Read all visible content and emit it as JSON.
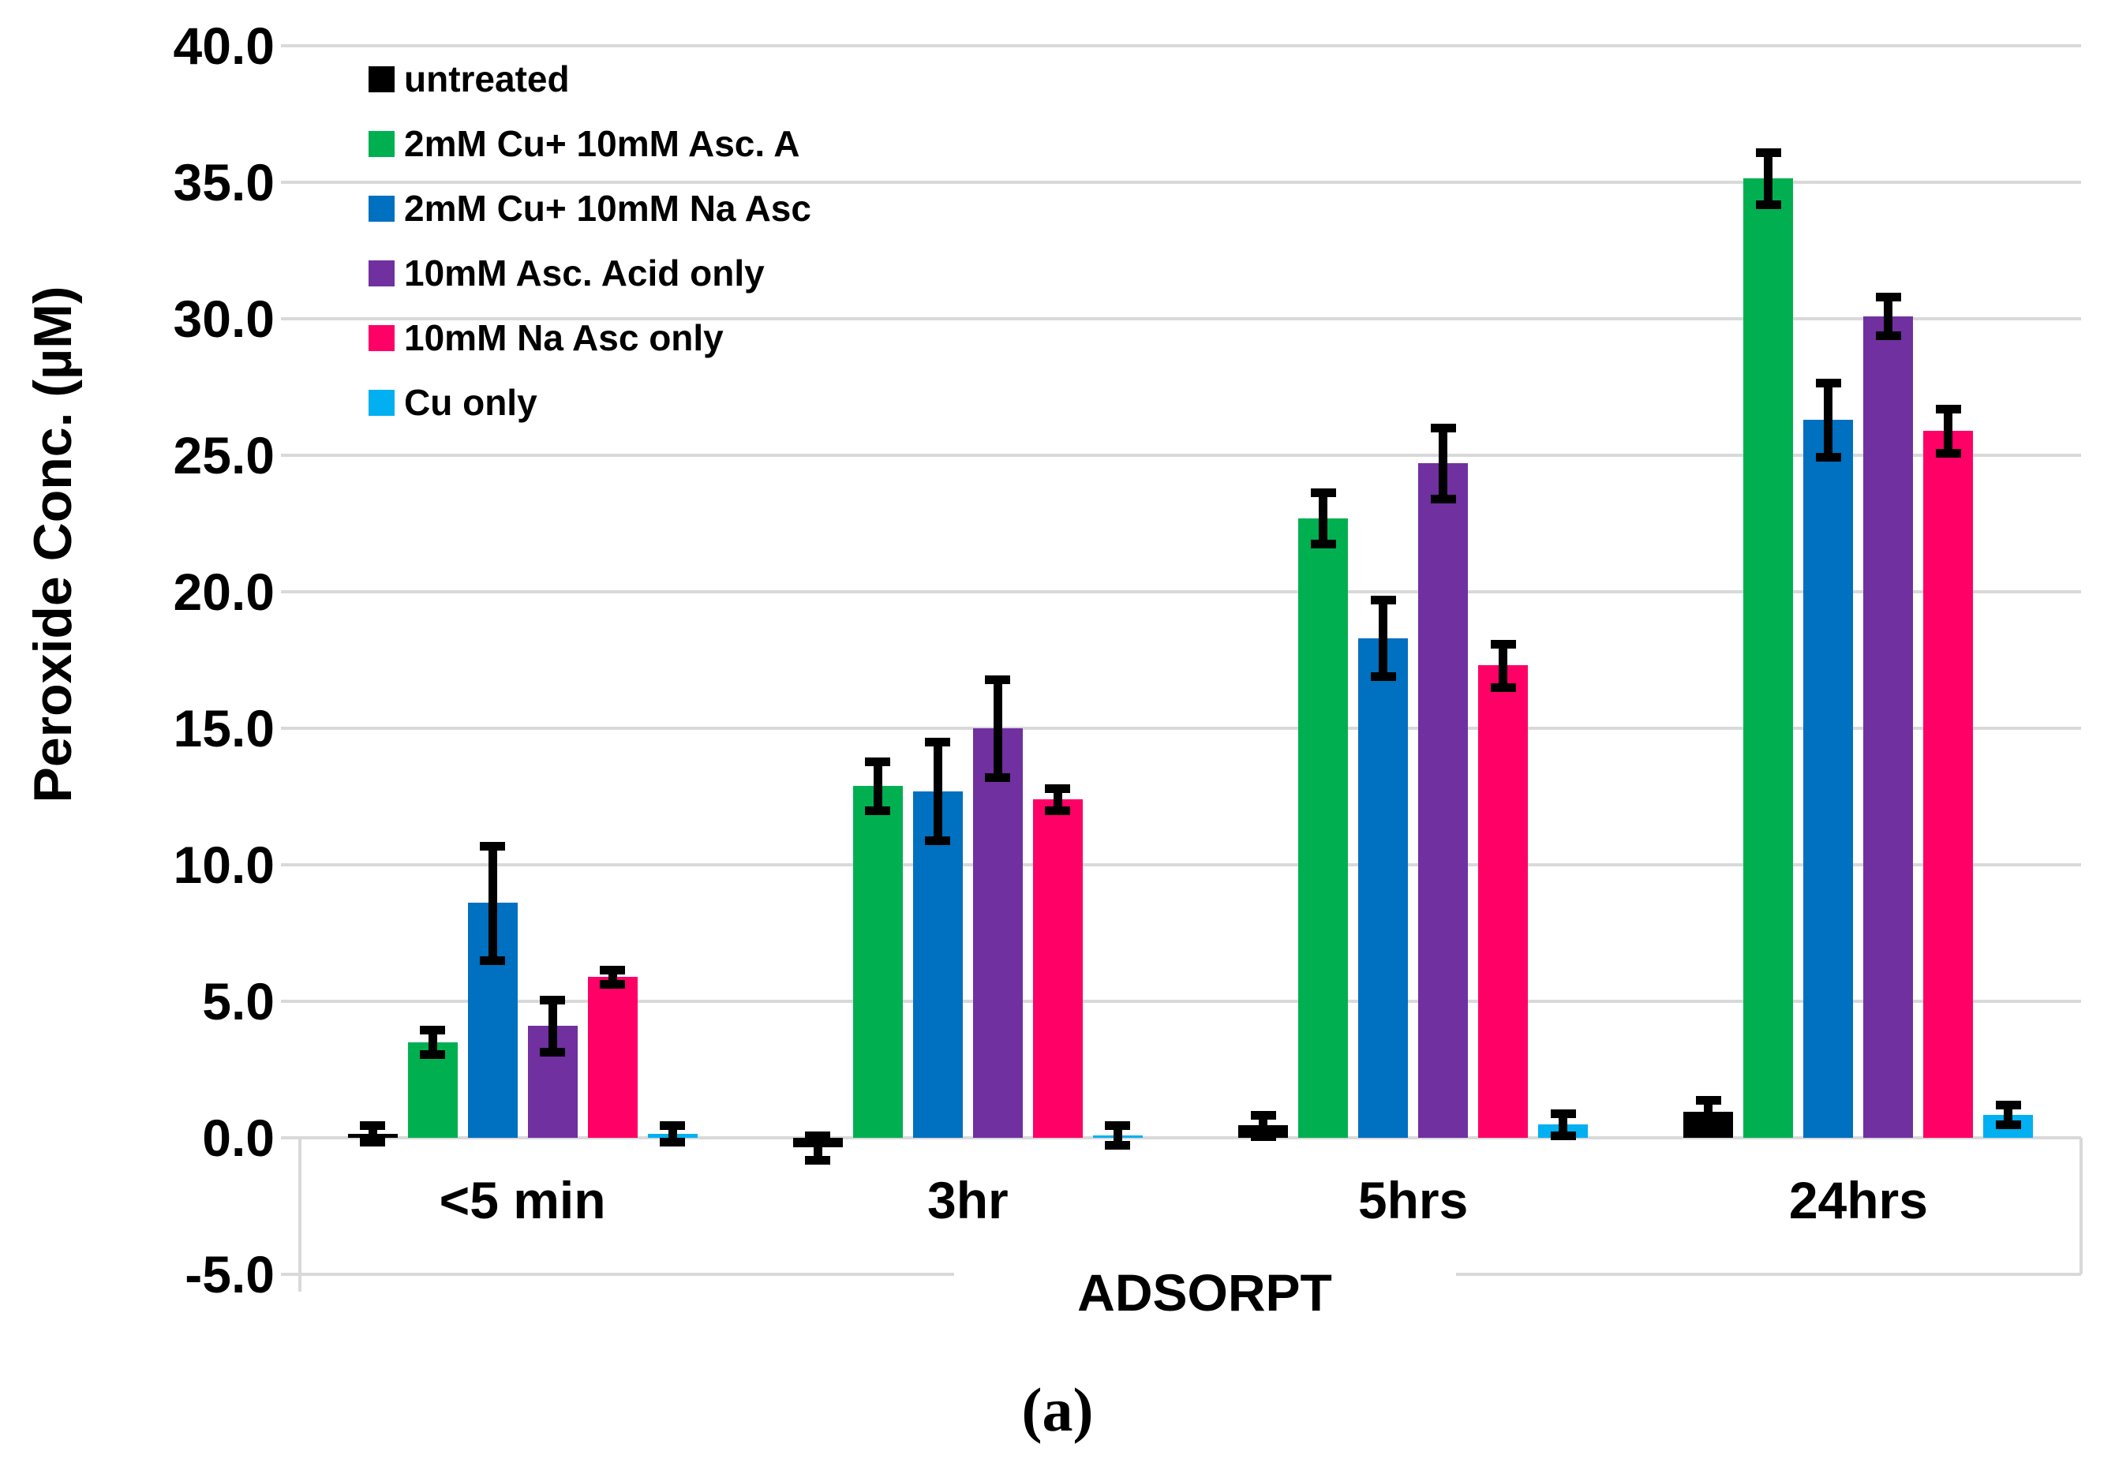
{
  "figure_caption": "(a)",
  "colors": {
    "background": "#FFFFFF",
    "grid": "#D9D9D9",
    "axis": "#D9D9D9",
    "text": "#000000",
    "error_bar": "#000000"
  },
  "chart_data": {
    "type": "bar",
    "title": "",
    "xlabel": "ADSORPT",
    "ylabel": "Peroxide Conc. (µM)",
    "ylim": [
      -5,
      40
    ],
    "ytick_step": 5,
    "ytick_labels": [
      "40.0",
      "35.0",
      "30.0",
      "25.0",
      "20.0",
      "15.0",
      "10.0",
      "5.0",
      "0.0",
      "-5.0"
    ],
    "grid": true,
    "legend_position": "top-left-inside",
    "categories": [
      "<5 min",
      "3hr",
      "5hrs",
      "24hrs"
    ],
    "series": [
      {
        "name": "untreated",
        "color": "#000000",
        "values": [
          0.15,
          -0.35,
          0.45,
          0.95
        ],
        "errors": [
          0.3,
          0.45,
          0.4,
          0.45
        ]
      },
      {
        "name": "2mM Cu+ 10mM Asc. A",
        "color": "#00B050",
        "values": [
          3.5,
          12.9,
          22.7,
          35.15
        ],
        "errors": [
          0.45,
          0.9,
          0.95,
          0.95
        ]
      },
      {
        "name": "2mM Cu+ 10mM Na Asc",
        "color": "#0070C0",
        "values": [
          8.6,
          12.7,
          18.3,
          26.3
        ],
        "errors": [
          2.1,
          1.8,
          1.4,
          1.35
        ]
      },
      {
        "name": "10mM Asc. Acid only",
        "color": "#7030A0",
        "values": [
          4.1,
          15.0,
          24.7,
          30.1
        ],
        "errors": [
          0.95,
          1.8,
          1.3,
          0.7
        ]
      },
      {
        "name": "10mM Na Asc only",
        "color": "#FF0066",
        "values": [
          5.9,
          12.4,
          17.3,
          25.9
        ],
        "errors": [
          0.25,
          0.4,
          0.8,
          0.8
        ]
      },
      {
        "name": "Cu only",
        "color": "#00B0F0",
        "values": [
          0.15,
          0.1,
          0.5,
          0.85
        ],
        "errors": [
          0.3,
          0.35,
          0.4,
          0.35
        ]
      }
    ]
  }
}
